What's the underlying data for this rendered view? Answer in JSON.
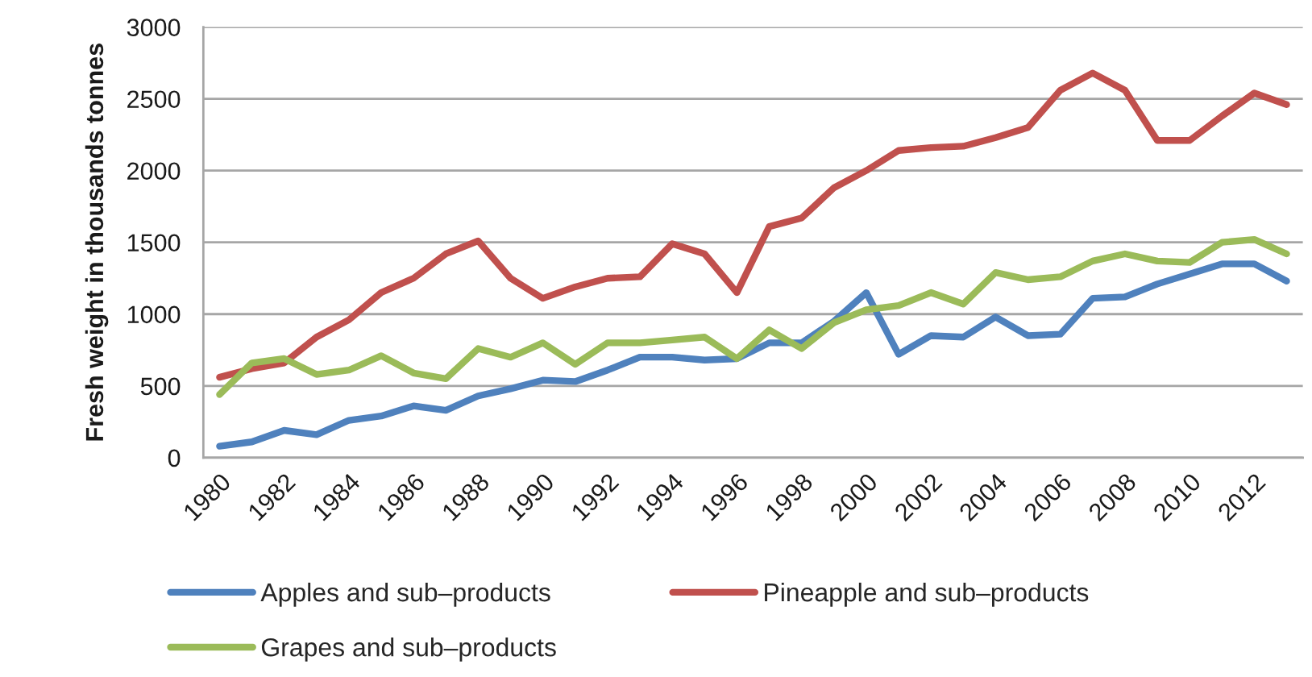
{
  "chart_data": {
    "type": "line",
    "ylabel": "Fresh weight in thousands tonnes",
    "categories": [
      "1980",
      null,
      "1982",
      null,
      "1984",
      null,
      "1986",
      null,
      "1988",
      null,
      "1990",
      null,
      "1992",
      null,
      "1994",
      null,
      "1996",
      null,
      "1998",
      null,
      "2000",
      null,
      "2002",
      null,
      "2004",
      null,
      "2006",
      null,
      "2008",
      null,
      "2010",
      null,
      "2012",
      null
    ],
    "series": [
      {
        "name": "Apples and sub–products",
        "color": "#4f81bd",
        "values": [
          80,
          110,
          190,
          160,
          260,
          290,
          360,
          330,
          430,
          480,
          540,
          530,
          610,
          700,
          700,
          680,
          690,
          800,
          800,
          950,
          1150,
          720,
          850,
          840,
          980,
          850,
          860,
          1110,
          1120,
          1210,
          1280,
          1350,
          1350,
          1230
        ]
      },
      {
        "name": "Pineapple and sub–products",
        "color": "#c0504d",
        "values": [
          560,
          620,
          660,
          840,
          960,
          1150,
          1250,
          1420,
          1510,
          1250,
          1110,
          1190,
          1250,
          1260,
          1490,
          1420,
          1150,
          1610,
          1670,
          1880,
          2000,
          2140,
          2160,
          2170,
          2230,
          2300,
          2560,
          2680,
          2560,
          2210,
          2210,
          2380,
          2540,
          2460
        ]
      },
      {
        "name": "Grapes and sub–products",
        "color": "#9bbb59",
        "values": [
          440,
          660,
          690,
          580,
          610,
          710,
          590,
          550,
          760,
          700,
          800,
          650,
          800,
          800,
          820,
          840,
          690,
          890,
          760,
          940,
          1030,
          1060,
          1150,
          1070,
          1290,
          1240,
          1260,
          1370,
          1420,
          1370,
          1360,
          1500,
          1520,
          1420
        ]
      }
    ],
    "ylim": [
      0,
      3000
    ],
    "yticks": [
      0,
      500,
      1000,
      1500,
      2000,
      2500,
      3000
    ],
    "grid": "y",
    "legend": "bottom",
    "marker": "none",
    "line_style": "solid"
  }
}
